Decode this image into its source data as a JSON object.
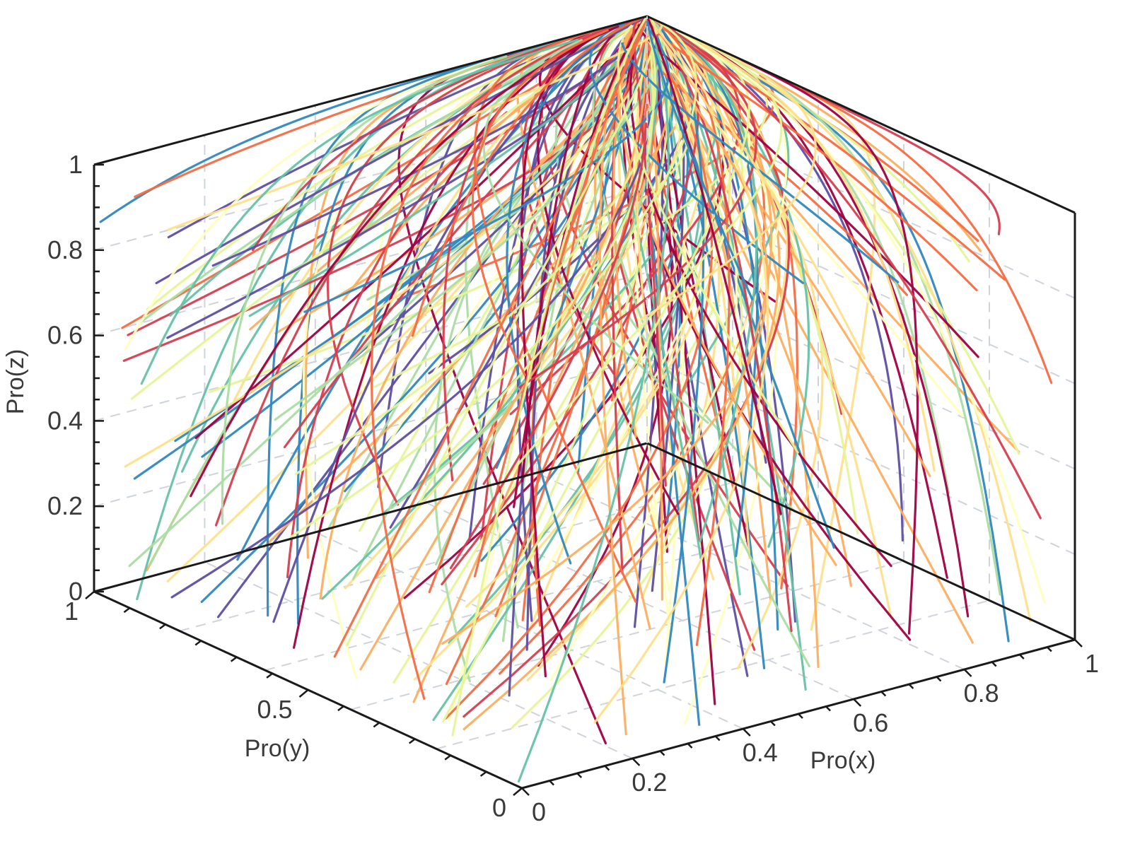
{
  "chart_data": {
    "type": "line",
    "subtype": "3d-trajectories",
    "title": "",
    "axes": {
      "x": {
        "label": "Pro(x)",
        "range": [
          0,
          1
        ],
        "ticks": [
          {
            "v": 0,
            "t": "0"
          },
          {
            "v": 0.2,
            "t": "0.2"
          },
          {
            "v": 0.4,
            "t": "0.4"
          },
          {
            "v": 0.6,
            "t": "0.6"
          },
          {
            "v": 0.8,
            "t": "0.8"
          },
          {
            "v": 1,
            "t": "1"
          }
        ]
      },
      "y": {
        "label": "Pro(y)",
        "range": [
          0,
          1
        ],
        "ticks": [
          {
            "v": 0,
            "t": "0"
          },
          {
            "v": 0.5,
            "t": "0.5"
          },
          {
            "v": 1,
            "t": "1"
          }
        ]
      },
      "z": {
        "label": "Pro(z)",
        "range": [
          0,
          1
        ],
        "ticks": [
          {
            "v": 0,
            "t": "0"
          },
          {
            "v": 0.2,
            "t": "0.2"
          },
          {
            "v": 0.4,
            "t": "0.4"
          },
          {
            "v": 0.6,
            "t": "0.6"
          },
          {
            "v": 0.8,
            "t": "0.8"
          },
          {
            "v": 1,
            "t": "1"
          }
        ]
      }
    },
    "grid": true,
    "colormap": [
      "#9e0142",
      "#d53e4f",
      "#f46d43",
      "#fdae61",
      "#fee08b",
      "#ffffbf",
      "#e6f598",
      "#abdda4",
      "#66c2a5",
      "#3288bd",
      "#5e4fa2"
    ],
    "convergence_point": {
      "x": 1,
      "y": 1,
      "z": 1
    },
    "trajectory_count": 240
  }
}
